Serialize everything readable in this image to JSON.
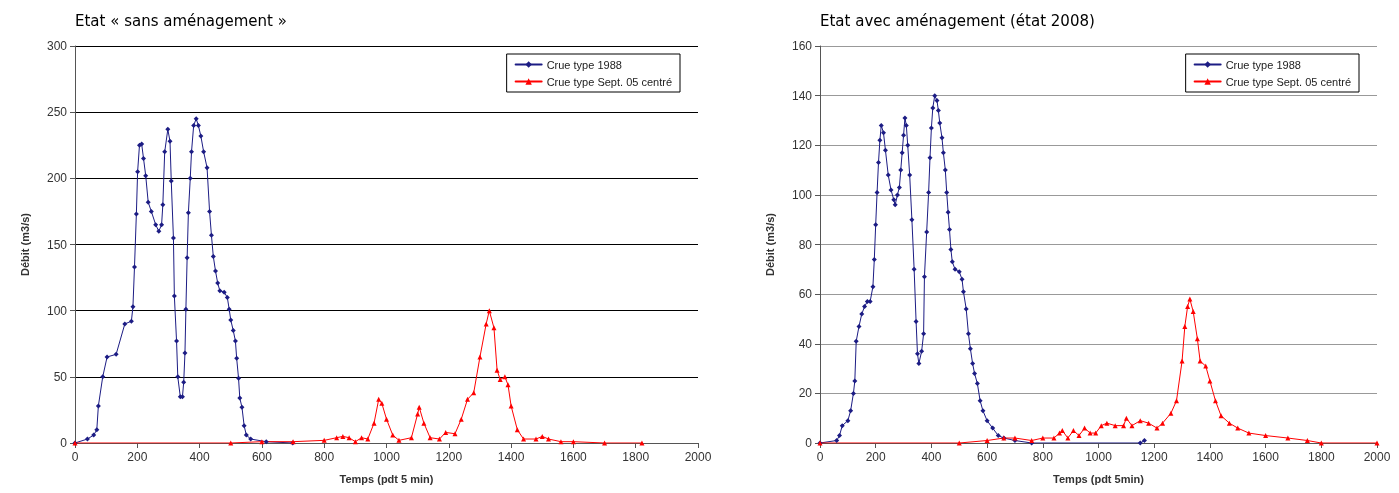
{
  "chart_data": [
    {
      "type": "line",
      "title": "Etat « sans aménagement »",
      "xlabel": "Temps (pdt 5 min)",
      "ylabel": "Débit (m3/s)",
      "xlim": [
        0,
        2000
      ],
      "xticks": [
        0,
        200,
        400,
        600,
        800,
        1000,
        1200,
        1400,
        1600,
        1800,
        2000
      ],
      "ylim": [
        0,
        300
      ],
      "yticks": [
        0,
        50,
        100,
        150,
        200,
        250,
        300
      ],
      "grid": "y",
      "legend": "top right",
      "series": [
        {
          "name": "Crue type 1988",
          "color": "#1c1c84",
          "marker": "diamond",
          "x": [
            0,
            40,
            60,
            70,
            75,
            89,
            103,
            132,
            160,
            181,
            186,
            191,
            197,
            201,
            207,
            214,
            220,
            227,
            235,
            245,
            259,
            269,
            278,
            282,
            288,
            298,
            305,
            309,
            316,
            319,
            326,
            330,
            338,
            345,
            349,
            353,
            356,
            360,
            364,
            370,
            374,
            381,
            389,
            396,
            404,
            413,
            424,
            432,
            438,
            444,
            451,
            458,
            465,
            479,
            489,
            495,
            500,
            508,
            515,
            519,
            525,
            529,
            536,
            543,
            550,
            564,
            614,
            699
          ],
          "values": [
            0,
            3,
            6,
            10,
            28,
            50,
            65,
            67,
            90,
            92,
            103,
            133,
            173,
            205,
            225,
            226,
            215,
            202,
            182,
            175,
            165,
            160,
            165,
            180,
            220,
            237,
            228,
            198,
            155,
            111,
            77,
            50,
            35,
            35,
            46,
            68,
            101,
            140,
            174,
            200,
            220,
            240,
            245,
            240,
            232,
            220,
            208,
            175,
            157,
            141,
            130,
            121,
            115,
            114,
            110,
            101,
            93,
            85,
            77,
            64,
            49,
            34,
            27,
            13,
            6,
            3,
            1,
            0
          ]
        },
        {
          "name": "Crue type Sept. 05 centré",
          "color": "#ff0000",
          "marker": "triangle",
          "x": [
            0,
            500,
            600,
            700,
            800,
            840,
            860,
            880,
            900,
            920,
            940,
            960,
            975,
            985,
            1000,
            1020,
            1040,
            1080,
            1100,
            1105,
            1120,
            1140,
            1170,
            1190,
            1220,
            1240,
            1260,
            1280,
            1300,
            1320,
            1330,
            1345,
            1355,
            1365,
            1380,
            1390,
            1400,
            1420,
            1440,
            1480,
            1500,
            1520,
            1560,
            1600,
            1700,
            1820
          ],
          "values": [
            0,
            0,
            1,
            1,
            2,
            4,
            5,
            4,
            1,
            4,
            3,
            15,
            33,
            30,
            18,
            6,
            2,
            4,
            22,
            27,
            15,
            4,
            3,
            8,
            7,
            18,
            33,
            38,
            65,
            90,
            100,
            87,
            55,
            48,
            50,
            44,
            28,
            10,
            3,
            3,
            5,
            3,
            1,
            1,
            0,
            0
          ]
        }
      ]
    },
    {
      "type": "line",
      "title": "Etat avec aménagement (état 2008)",
      "xlabel": "Temps (pdt 5min)",
      "ylabel": "Débit (m3/s)",
      "xlim": [
        0,
        2000
      ],
      "xticks": [
        0,
        200,
        400,
        600,
        800,
        1000,
        1200,
        1400,
        1600,
        1800,
        2000
      ],
      "ylim": [
        0,
        160
      ],
      "yticks": [
        0,
        20,
        40,
        60,
        80,
        100,
        120,
        140,
        160
      ],
      "grid": "y",
      "legend": "top right",
      "series": [
        {
          "name": "Crue type 1988",
          "color": "#1c1c84",
          "marker": "diamond",
          "x": [
            0,
            60,
            70,
            80,
            100,
            110,
            120,
            125,
            130,
            140,
            150,
            160,
            170,
            180,
            190,
            195,
            200,
            205,
            210,
            215,
            220,
            228,
            235,
            245,
            255,
            265,
            270,
            278,
            285,
            290,
            295,
            300,
            305,
            310,
            315,
            322,
            330,
            338,
            345,
            350,
            355,
            365,
            372,
            375,
            383,
            390,
            395,
            400,
            405,
            412,
            420,
            425,
            430,
            438,
            443,
            450,
            455,
            460,
            465,
            470,
            475,
            485,
            500,
            510,
            515,
            525,
            533,
            540,
            548,
            555,
            565,
            575,
            585,
            600,
            620,
            640,
            660,
            700,
            760,
            1150,
            1165
          ],
          "values": [
            0,
            1,
            3,
            7,
            9,
            13,
            20,
            25,
            41,
            47,
            52,
            55,
            57,
            57,
            63,
            74,
            88,
            101,
            113,
            122,
            128,
            125,
            118,
            108,
            102,
            98,
            96,
            100,
            103,
            110,
            117,
            124,
            131,
            128,
            120,
            108,
            90,
            70,
            49,
            36,
            32,
            37,
            44,
            67,
            85,
            101,
            115,
            127,
            135,
            140,
            138,
            134,
            129,
            123,
            117,
            110,
            101,
            93,
            86,
            78,
            73,
            70,
            69,
            66,
            61,
            54,
            44,
            38,
            32,
            28,
            24,
            17,
            13,
            9,
            6,
            3,
            2,
            1,
            0,
            0,
            1
          ]
        },
        {
          "name": "Crue type Sept. 05 centré",
          "color": "#ff0000",
          "marker": "triangle",
          "x": [
            0,
            500,
            600,
            660,
            700,
            760,
            800,
            840,
            860,
            870,
            890,
            910,
            930,
            950,
            970,
            990,
            1010,
            1030,
            1060,
            1090,
            1100,
            1120,
            1150,
            1180,
            1210,
            1230,
            1260,
            1280,
            1300,
            1310,
            1320,
            1328,
            1340,
            1355,
            1365,
            1385,
            1400,
            1420,
            1440,
            1470,
            1500,
            1540,
            1600,
            1680,
            1750,
            1800,
            2000
          ],
          "values": [
            0,
            0,
            1,
            2,
            2,
            1,
            2,
            2,
            4,
            5,
            2,
            5,
            3,
            6,
            4,
            4,
            7,
            8,
            7,
            7,
            10,
            7,
            9,
            8,
            6,
            8,
            12,
            17,
            33,
            47,
            55,
            58,
            53,
            42,
            33,
            31,
            25,
            17,
            11,
            8,
            6,
            4,
            3,
            2,
            1,
            0,
            0
          ]
        }
      ]
    }
  ]
}
